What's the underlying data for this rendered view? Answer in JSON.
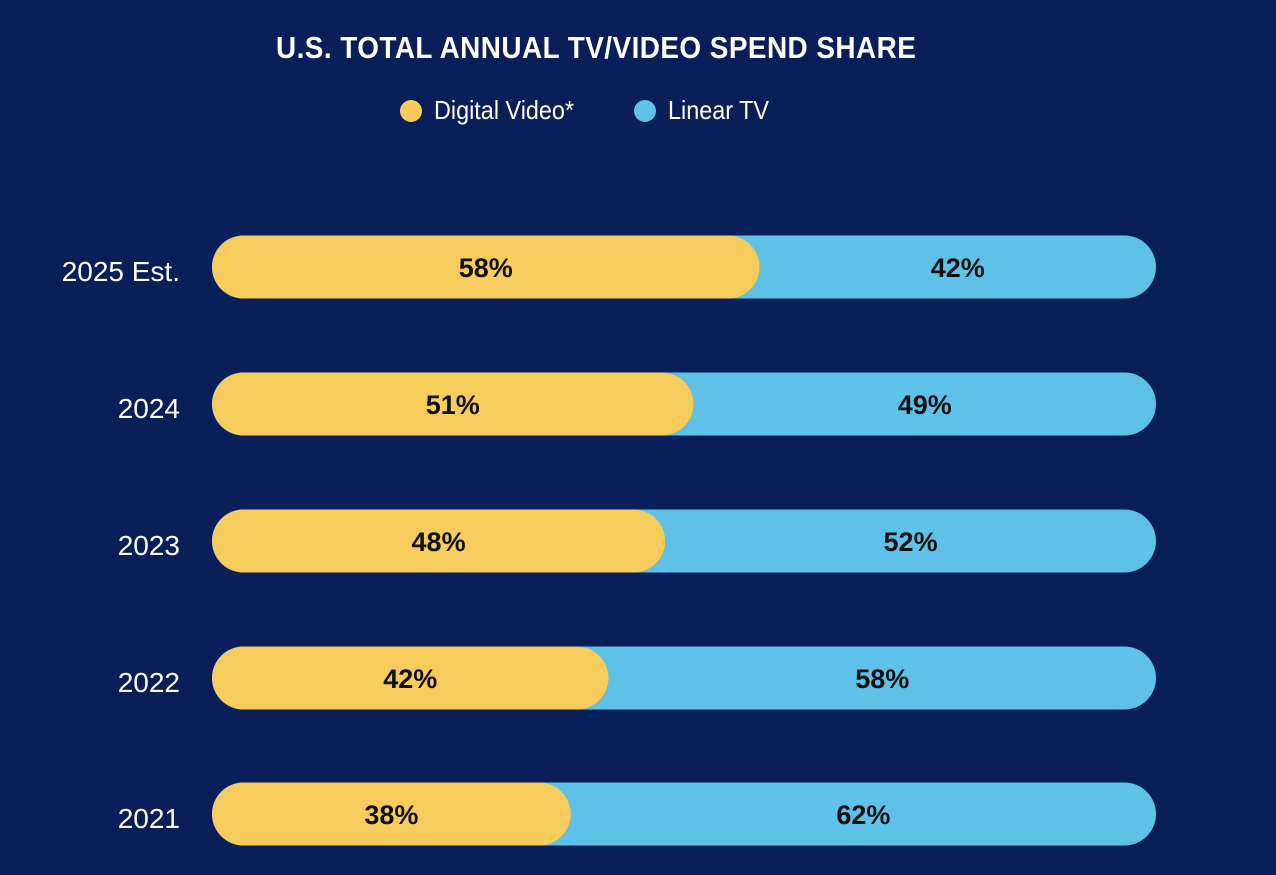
{
  "chart_data": {
    "type": "bar",
    "orientation": "horizontal",
    "stacked": true,
    "title": "U.S. TOTAL ANNUAL TV/VIDEO SPEND SHARE",
    "xlabel": "",
    "ylabel": "",
    "xlim": [
      0,
      100
    ],
    "grid": false,
    "legend": "top-center",
    "categories": [
      "2025 Est.",
      "2024",
      "2023",
      "2022",
      "2021"
    ],
    "series": [
      {
        "name": "Digital Video*",
        "color": "#f6cc5c",
        "values": [
          58,
          51,
          48,
          42,
          38
        ],
        "labels": [
          "58%",
          "51%",
          "48%",
          "42%",
          "38%"
        ]
      },
      {
        "name": "Linear TV",
        "color": "#5ec1e8",
        "values": [
          42,
          49,
          52,
          58,
          62
        ],
        "labels": [
          "42%",
          "49%",
          "52%",
          "58%",
          "62%"
        ]
      }
    ]
  },
  "colors": {
    "background": "#0a1e5a",
    "text_light": "#ffffff",
    "text_dark": "#111111"
  }
}
